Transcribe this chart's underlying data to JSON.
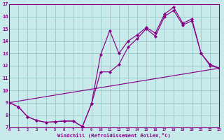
{
  "xlabel": "Windchill (Refroidissement éolien,°C)",
  "bg_color": "#c8eaea",
  "line_color": "#880088",
  "grid_color": "#9ecece",
  "x_min": 0,
  "x_max": 23,
  "y_min": 7,
  "y_max": 17,
  "line1": [
    [
      0,
      9.0
    ],
    [
      1,
      8.65
    ],
    [
      2,
      7.85
    ],
    [
      3,
      7.55
    ],
    [
      4,
      7.4
    ],
    [
      5,
      7.45
    ],
    [
      6,
      7.5
    ],
    [
      7,
      7.5
    ],
    [
      8,
      7.05
    ],
    [
      9,
      8.9
    ],
    [
      10,
      12.9
    ],
    [
      11,
      14.85
    ],
    [
      12,
      13.0
    ],
    [
      13,
      14.0
    ],
    [
      14,
      14.5
    ],
    [
      15,
      15.1
    ],
    [
      16,
      14.65
    ],
    [
      17,
      16.2
    ],
    [
      18,
      16.75
    ],
    [
      19,
      15.45
    ],
    [
      20,
      15.8
    ],
    [
      21,
      13.0
    ],
    [
      22,
      12.1
    ],
    [
      23,
      11.8
    ]
  ],
  "line2": [
    [
      0,
      9.0
    ],
    [
      1,
      8.65
    ],
    [
      2,
      7.85
    ],
    [
      3,
      7.55
    ],
    [
      4,
      7.4
    ],
    [
      5,
      7.45
    ],
    [
      6,
      7.5
    ],
    [
      7,
      7.5
    ],
    [
      8,
      7.05
    ],
    [
      9,
      8.9
    ],
    [
      10,
      11.5
    ],
    [
      11,
      11.5
    ],
    [
      12,
      12.1
    ],
    [
      13,
      13.5
    ],
    [
      14,
      14.2
    ],
    [
      15,
      15.0
    ],
    [
      16,
      14.4
    ],
    [
      17,
      16.0
    ],
    [
      18,
      16.5
    ],
    [
      19,
      15.3
    ],
    [
      20,
      15.65
    ],
    [
      21,
      13.0
    ],
    [
      22,
      12.0
    ],
    [
      23,
      11.8
    ]
  ],
  "line3_x": [
    0,
    23
  ],
  "line3_y": [
    9.0,
    11.8
  ]
}
